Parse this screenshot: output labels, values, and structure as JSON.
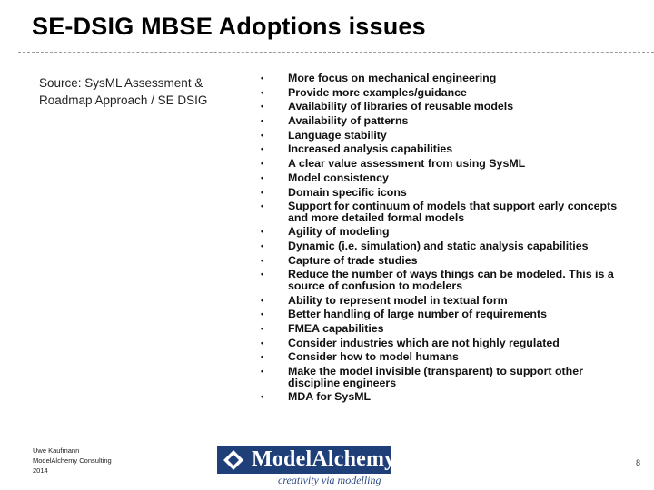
{
  "slide": {
    "title": "SE-DSIG MBSE Adoptions issues",
    "source": "Source: SysML Assessment & Roadmap Approach / SE DSIG",
    "bullets": [
      "More focus on mechanical engineering",
      "Provide more examples/guidance",
      "Availability of libraries of reusable models",
      "Availability of patterns",
      "Language stability",
      "Increased analysis capabilities",
      "A clear value assessment from using SysML",
      "Model consistency",
      "Domain specific icons",
      "Support for continuum of models that support early concepts and more detailed formal models",
      "Agility of modeling",
      "Dynamic (i.e. simulation) and static analysis capabilities",
      "Capture of trade studies",
      "Reduce the number of ways things can be modeled. This is a source of confusion to modelers",
      "Ability to represent model in textual form",
      "Better handling of large number of requirements",
      "FMEA capabilities",
      "Consider industries which are not highly regulated",
      "Consider how to model humans",
      "Make the model invisible (transparent) to support other discipline engineers",
      "MDA for SysML"
    ],
    "bullet_glyph": "•"
  },
  "footer": {
    "author": "Uwe Kaufmann",
    "company": "ModelAlchemy Consulting",
    "year": "2014",
    "logo_text": "ModelAlchemy",
    "tagline": "creativity via modelling",
    "page_number": "8"
  },
  "colors": {
    "logo_background": "#1f3f78",
    "tagline": "#2c4a86"
  }
}
